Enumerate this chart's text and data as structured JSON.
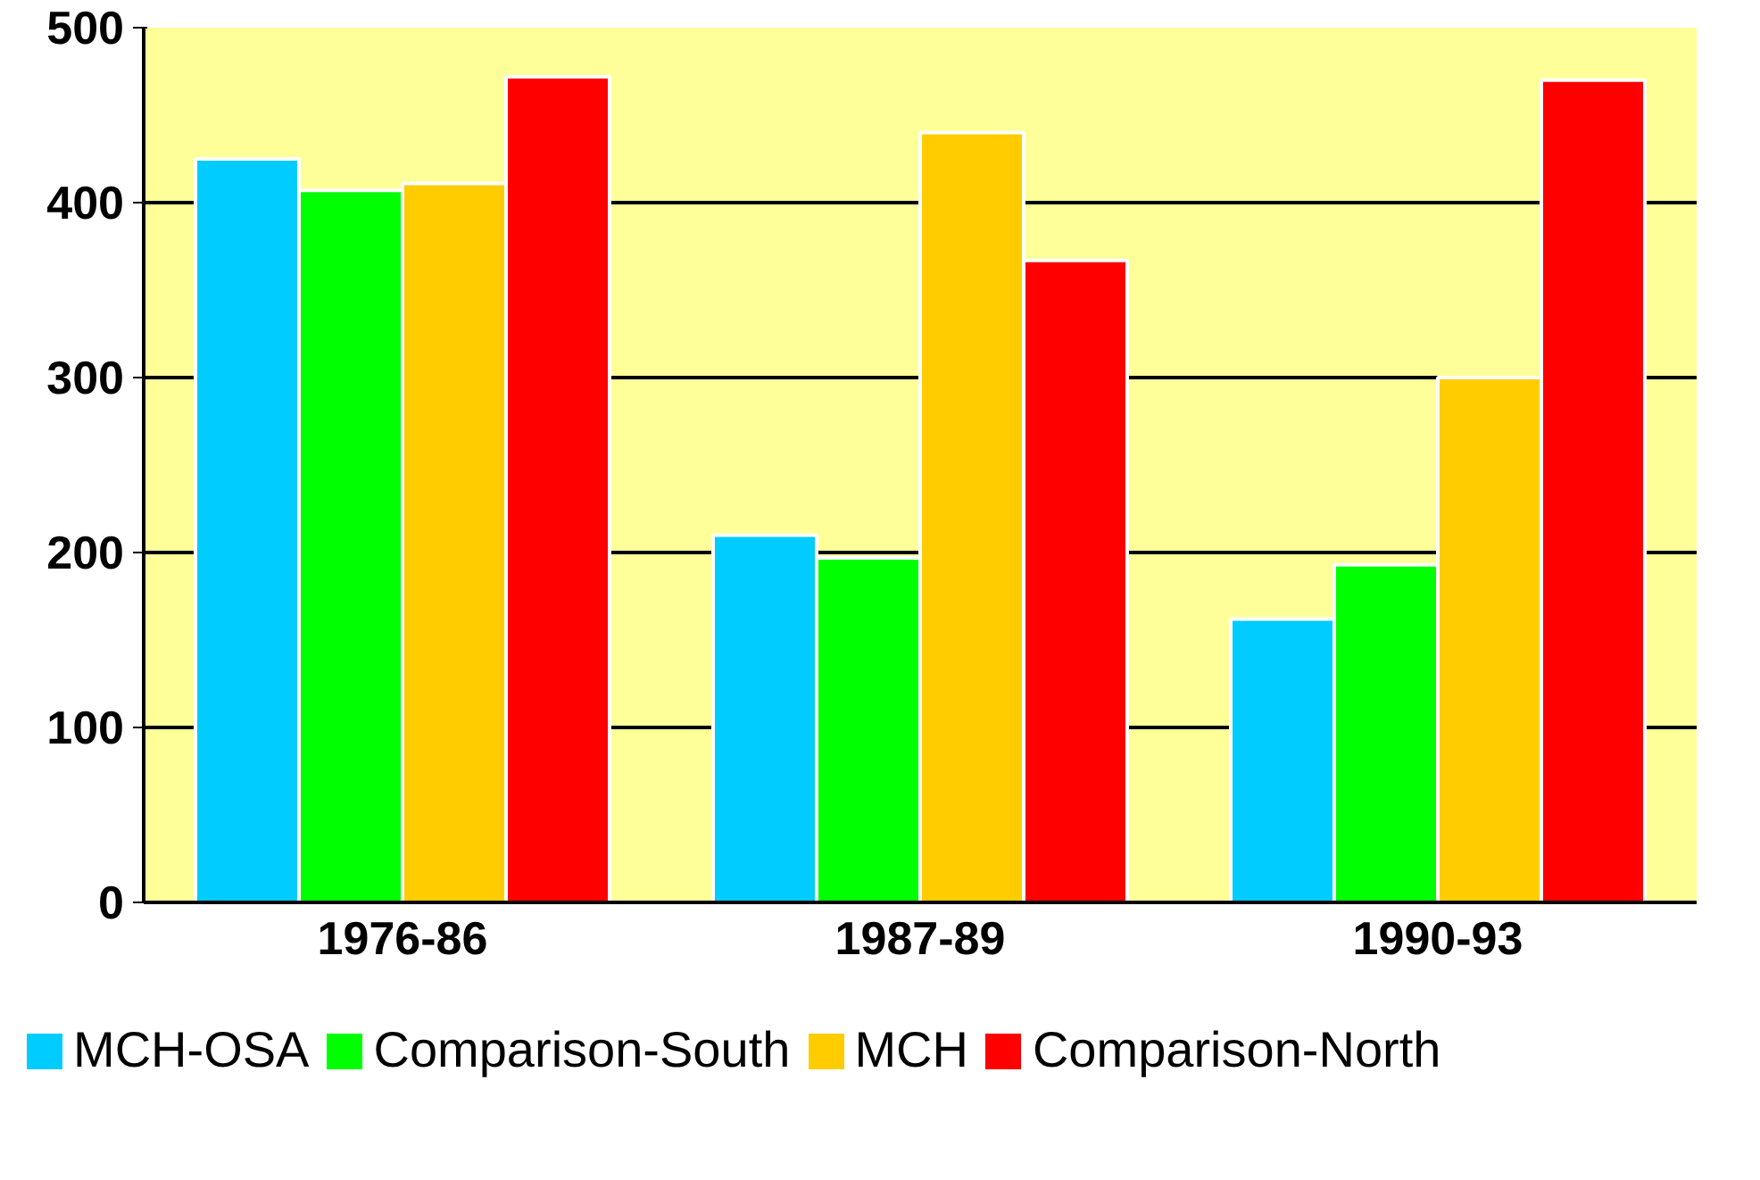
{
  "chart_data": {
    "type": "bar",
    "categories": [
      "1976-86",
      "1987-89",
      "1990-93"
    ],
    "series": [
      {
        "name": "MCH-OSA",
        "color": "#00ccff",
        "values": [
          425,
          210,
          162
        ]
      },
      {
        "name": "Comparison-South",
        "color": "#00ff00",
        "values": [
          407,
          197,
          193
        ]
      },
      {
        "name": "MCH",
        "color": "#ffcc00",
        "values": [
          411,
          440,
          300
        ]
      },
      {
        "name": "Comparison-North",
        "color": "#ff0000",
        "values": [
          472,
          367,
          470
        ]
      }
    ],
    "ylim": [
      0,
      500
    ],
    "yticks": [
      0,
      100,
      200,
      300,
      400,
      500
    ],
    "grid": "y",
    "legend": "bottom"
  }
}
